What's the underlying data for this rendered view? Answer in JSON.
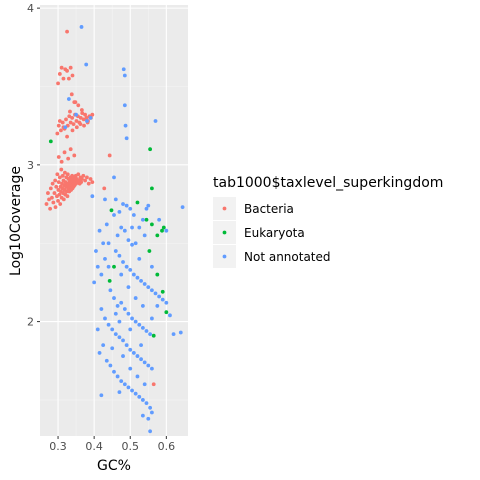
{
  "chart_data": {
    "type": "scatter",
    "title": "",
    "xlabel": "GC%",
    "ylabel": "Log10Coverage",
    "xlim": [
      0.25,
      0.66
    ],
    "ylim": [
      1.27,
      4.02
    ],
    "x_ticks": [
      0.3,
      0.4,
      0.5,
      0.6
    ],
    "x_tick_labels": [
      "0.3",
      "0.4",
      "0.5",
      "0.6"
    ],
    "y_ticks": [
      2,
      3,
      4
    ],
    "y_tick_labels": [
      "2",
      "3",
      "4"
    ],
    "grid": true,
    "background": "#ebebeb",
    "legend": {
      "title": "tab1000$taxlevel_superkingdom",
      "position": "right"
    },
    "series": [
      {
        "name": "Bacteria",
        "color": "#f8766d",
        "points": [
          [
            0.268,
            2.75
          ],
          [
            0.272,
            2.82
          ],
          [
            0.275,
            2.78
          ],
          [
            0.278,
            2.72
          ],
          [
            0.28,
            2.85
          ],
          [
            0.283,
            2.79
          ],
          [
            0.285,
            2.88
          ],
          [
            0.287,
            2.76
          ],
          [
            0.29,
            2.82
          ],
          [
            0.292,
            2.9
          ],
          [
            0.293,
            2.73
          ],
          [
            0.295,
            2.86
          ],
          [
            0.297,
            2.8
          ],
          [
            0.298,
            2.94
          ],
          [
            0.3,
            2.77
          ],
          [
            0.301,
            2.84
          ],
          [
            0.302,
            2.89
          ],
          [
            0.304,
            2.81
          ],
          [
            0.305,
            2.92
          ],
          [
            0.306,
            2.75
          ],
          [
            0.307,
            2.86
          ],
          [
            0.308,
            2.83
          ],
          [
            0.309,
            2.97
          ],
          [
            0.31,
            2.79
          ],
          [
            0.311,
            2.88
          ],
          [
            0.312,
            2.85
          ],
          [
            0.313,
            2.93
          ],
          [
            0.314,
            2.82
          ],
          [
            0.315,
            2.9
          ],
          [
            0.316,
            2.78
          ],
          [
            0.317,
            2.87
          ],
          [
            0.318,
            2.84
          ],
          [
            0.319,
            2.95
          ],
          [
            0.32,
            2.81
          ],
          [
            0.321,
            2.89
          ],
          [
            0.322,
            2.86
          ],
          [
            0.323,
            2.92
          ],
          [
            0.324,
            2.83
          ],
          [
            0.325,
            2.88
          ],
          [
            0.326,
            2.8
          ],
          [
            0.327,
            2.94
          ],
          [
            0.328,
            2.85
          ],
          [
            0.329,
            2.91
          ],
          [
            0.33,
            2.87
          ],
          [
            0.331,
            2.83
          ],
          [
            0.332,
            2.89
          ],
          [
            0.333,
            2.86
          ],
          [
            0.334,
            2.92
          ],
          [
            0.335,
            2.88
          ],
          [
            0.336,
            2.84
          ],
          [
            0.337,
            2.9
          ],
          [
            0.338,
            2.87
          ],
          [
            0.339,
            2.93
          ],
          [
            0.34,
            2.85
          ],
          [
            0.341,
            2.89
          ],
          [
            0.342,
            2.91
          ],
          [
            0.343,
            2.86
          ],
          [
            0.344,
            2.88
          ],
          [
            0.345,
            2.92
          ],
          [
            0.346,
            2.87
          ],
          [
            0.347,
            2.9
          ],
          [
            0.348,
            2.89
          ],
          [
            0.349,
            2.93
          ],
          [
            0.35,
            2.88
          ],
          [
            0.352,
            2.91
          ],
          [
            0.354,
            2.89
          ],
          [
            0.356,
            2.94
          ],
          [
            0.358,
            2.9
          ],
          [
            0.36,
            2.88
          ],
          [
            0.362,
            2.92
          ],
          [
            0.364,
            2.89
          ],
          [
            0.366,
            2.91
          ],
          [
            0.37,
            2.93
          ],
          [
            0.375,
            2.9
          ],
          [
            0.38,
            2.92
          ],
          [
            0.385,
            2.88
          ],
          [
            0.39,
            2.91
          ],
          [
            0.395,
            2.89
          ],
          [
            0.302,
            3.05
          ],
          [
            0.31,
            3.02
          ],
          [
            0.318,
            3.08
          ],
          [
            0.328,
            3.04
          ],
          [
            0.345,
            3.06
          ],
          [
            0.335,
            3.1
          ],
          [
            0.298,
            3.2
          ],
          [
            0.302,
            3.25
          ],
          [
            0.308,
            3.22
          ],
          [
            0.313,
            3.27
          ],
          [
            0.318,
            3.23
          ],
          [
            0.322,
            3.29
          ],
          [
            0.327,
            3.25
          ],
          [
            0.331,
            3.31
          ],
          [
            0.335,
            3.27
          ],
          [
            0.339,
            3.3
          ],
          [
            0.343,
            3.26
          ],
          [
            0.347,
            3.32
          ],
          [
            0.351,
            3.28
          ],
          [
            0.355,
            3.31
          ],
          [
            0.359,
            3.27
          ],
          [
            0.363,
            3.3
          ],
          [
            0.367,
            3.33
          ],
          [
            0.371,
            3.29
          ],
          [
            0.375,
            3.32
          ],
          [
            0.379,
            3.3
          ],
          [
            0.383,
            3.28
          ],
          [
            0.387,
            3.31
          ],
          [
            0.391,
            3.3
          ],
          [
            0.395,
            3.32
          ],
          [
            0.34,
            3.22
          ],
          [
            0.352,
            3.24
          ],
          [
            0.362,
            3.26
          ],
          [
            0.372,
            3.25
          ],
          [
            0.382,
            3.27
          ],
          [
            0.333,
            3.34
          ],
          [
            0.366,
            3.35
          ],
          [
            0.325,
            3.18
          ],
          [
            0.345,
            3.4
          ],
          [
            0.315,
            3.24
          ],
          [
            0.356,
            3.38
          ],
          [
            0.305,
            3.28
          ],
          [
            0.3,
            3.52
          ],
          [
            0.305,
            3.58
          ],
          [
            0.31,
            3.62
          ],
          [
            0.315,
            3.55
          ],
          [
            0.32,
            3.61
          ],
          [
            0.325,
            3.6
          ],
          [
            0.33,
            3.55
          ],
          [
            0.335,
            3.62
          ],
          [
            0.34,
            3.57
          ],
          [
            0.338,
            3.45
          ],
          [
            0.348,
            3.4
          ],
          [
            0.325,
            3.85
          ],
          [
            0.428,
            2.85
          ],
          [
            0.443,
            3.06
          ],
          [
            0.565,
            1.6
          ]
        ]
      },
      {
        "name": "Eukaryota",
        "color": "#00ba38",
        "points": [
          [
            0.28,
            3.15
          ],
          [
            0.443,
            2.26
          ],
          [
            0.448,
            2.71
          ],
          [
            0.52,
            2.76
          ],
          [
            0.555,
            3.1
          ],
          [
            0.56,
            2.85
          ],
          [
            0.545,
            2.65
          ],
          [
            0.553,
            2.45
          ],
          [
            0.56,
            2.62
          ],
          [
            0.575,
            2.55
          ],
          [
            0.588,
            2.58
          ],
          [
            0.593,
            2.6
          ],
          [
            0.59,
            2.19
          ],
          [
            0.575,
            2.3
          ],
          [
            0.565,
            1.91
          ],
          [
            0.6,
            2.06
          ],
          [
            0.455,
            2.35
          ]
        ]
      },
      {
        "name": "Not annotated",
        "color": "#619cff",
        "points": [
          [
            0.365,
            3.88
          ],
          [
            0.378,
            3.64
          ],
          [
            0.482,
            3.61
          ],
          [
            0.485,
            3.57
          ],
          [
            0.485,
            3.38
          ],
          [
            0.487,
            3.25
          ],
          [
            0.49,
            3.17
          ],
          [
            0.455,
            2.92
          ],
          [
            0.46,
            2.78
          ],
          [
            0.47,
            2.7
          ],
          [
            0.48,
            2.75
          ],
          [
            0.49,
            2.74
          ],
          [
            0.5,
            2.72
          ],
          [
            0.475,
            2.6
          ],
          [
            0.485,
            2.58
          ],
          [
            0.495,
            2.52
          ],
          [
            0.505,
            2.49
          ],
          [
            0.515,
            2.5
          ],
          [
            0.525,
            2.6
          ],
          [
            0.535,
            2.65
          ],
          [
            0.545,
            2.72
          ],
          [
            0.55,
            2.74
          ],
          [
            0.46,
            2.45
          ],
          [
            0.47,
            2.42
          ],
          [
            0.48,
            2.38
          ],
          [
            0.49,
            2.35
          ],
          [
            0.5,
            2.33
          ],
          [
            0.51,
            2.3
          ],
          [
            0.52,
            2.28
          ],
          [
            0.53,
            2.26
          ],
          [
            0.54,
            2.24
          ],
          [
            0.55,
            2.22
          ],
          [
            0.56,
            2.2
          ],
          [
            0.57,
            2.18
          ],
          [
            0.58,
            2.16
          ],
          [
            0.59,
            2.14
          ],
          [
            0.6,
            2.12
          ],
          [
            0.44,
            2.35
          ],
          [
            0.43,
            2.4
          ],
          [
            0.42,
            2.3
          ],
          [
            0.41,
            2.35
          ],
          [
            0.4,
            2.25
          ],
          [
            0.445,
            2.2
          ],
          [
            0.455,
            2.15
          ],
          [
            0.465,
            2.1
          ],
          [
            0.475,
            2.12
          ],
          [
            0.485,
            2.08
          ],
          [
            0.495,
            2.05
          ],
          [
            0.505,
            2.02
          ],
          [
            0.515,
            2.0
          ],
          [
            0.525,
            1.98
          ],
          [
            0.535,
            1.96
          ],
          [
            0.545,
            1.94
          ],
          [
            0.555,
            1.92
          ],
          [
            0.42,
            2.08
          ],
          [
            0.43,
            2.02
          ],
          [
            0.44,
            1.98
          ],
          [
            0.45,
            1.95
          ],
          [
            0.46,
            1.92
          ],
          [
            0.47,
            1.9
          ],
          [
            0.48,
            1.88
          ],
          [
            0.49,
            1.85
          ],
          [
            0.5,
            1.82
          ],
          [
            0.51,
            1.8
          ],
          [
            0.52,
            1.78
          ],
          [
            0.53,
            1.76
          ],
          [
            0.54,
            1.74
          ],
          [
            0.55,
            1.72
          ],
          [
            0.56,
            1.7
          ],
          [
            0.41,
            1.95
          ],
          [
            0.415,
            1.8
          ],
          [
            0.425,
            1.85
          ],
          [
            0.435,
            1.75
          ],
          [
            0.445,
            1.72
          ],
          [
            0.455,
            1.68
          ],
          [
            0.465,
            1.65
          ],
          [
            0.475,
            1.62
          ],
          [
            0.485,
            1.6
          ],
          [
            0.495,
            1.58
          ],
          [
            0.505,
            1.56
          ],
          [
            0.515,
            1.54
          ],
          [
            0.525,
            1.52
          ],
          [
            0.535,
            1.5
          ],
          [
            0.545,
            1.48
          ],
          [
            0.555,
            1.45
          ],
          [
            0.56,
            1.42
          ],
          [
            0.55,
            1.38
          ],
          [
            0.535,
            1.4
          ],
          [
            0.555,
            1.3
          ],
          [
            0.42,
            1.53
          ],
          [
            0.47,
            1.55
          ],
          [
            0.62,
            1.92
          ],
          [
            0.64,
            1.93
          ],
          [
            0.645,
            2.73
          ],
          [
            0.6,
            2.58
          ],
          [
            0.58,
            2.65
          ],
          [
            0.57,
            3.28
          ],
          [
            0.56,
            2.02
          ],
          [
            0.61,
            2.04
          ],
          [
            0.405,
            2.45
          ],
          [
            0.415,
            2.58
          ],
          [
            0.395,
            2.8
          ],
          [
            0.33,
            3.42
          ],
          [
            0.32,
            3.24
          ],
          [
            0.39,
            3.3
          ],
          [
            0.35,
            3.32
          ],
          [
            0.38,
            3.28
          ],
          [
            0.43,
            2.78
          ],
          [
            0.425,
            2.5
          ],
          [
            0.435,
            2.62
          ],
          [
            0.465,
            2.55
          ],
          [
            0.505,
            2.6
          ],
          [
            0.525,
            2.4
          ],
          [
            0.54,
            2.55
          ],
          [
            0.56,
            2.35
          ],
          [
            0.575,
            2.1
          ],
          [
            0.47,
            2.0
          ],
          [
            0.5,
            1.95
          ],
          [
            0.45,
            1.83
          ],
          [
            0.53,
            1.85
          ],
          [
            0.51,
            2.68
          ],
          [
            0.455,
            2.68
          ],
          [
            0.475,
            2.3
          ],
          [
            0.495,
            2.22
          ],
          [
            0.515,
            2.15
          ],
          [
            0.535,
            2.1
          ],
          [
            0.44,
            2.5
          ],
          [
            0.46,
            2.05
          ],
          [
            0.48,
            1.78
          ],
          [
            0.5,
            1.7
          ],
          [
            0.52,
            1.65
          ],
          [
            0.54,
            1.6
          ]
        ]
      }
    ]
  }
}
